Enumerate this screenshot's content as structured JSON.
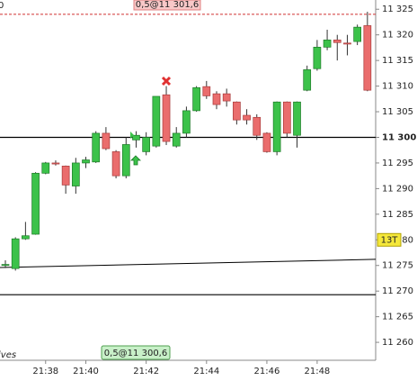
{
  "chart_data": {
    "type": "candlestick",
    "categories": [
      null,
      null,
      null,
      null,
      "21:38",
      null,
      null,
      null,
      "21:40",
      null,
      null,
      null,
      null,
      null,
      "21:42",
      null,
      null,
      null,
      null,
      null,
      "21:44",
      null,
      null,
      null,
      null,
      null,
      "21:46",
      null,
      null,
      null,
      null,
      "21:48",
      null,
      null,
      null,
      null,
      null
    ],
    "open": [
      11275,
      11274.4,
      11280.2,
      11281.1,
      11293,
      11295,
      11294.4,
      11290.5,
      11295,
      11295.2,
      11300.8,
      11297.2,
      11292.5,
      11299.5,
      11297.2,
      11298.3,
      11308.3,
      11298.3,
      11300.8,
      11305.2,
      11309.9,
      11308.5,
      11308.5,
      11306.9,
      11304.3,
      11303.9,
      11300.8,
      11297.2,
      11306.9,
      11300.4,
      11309.2,
      11313.4,
      11317.6,
      11319,
      11318.4,
      11318.7,
      11321.8
    ],
    "high": [
      11276,
      11280.5,
      11283.5,
      11293.2,
      11295.2,
      11295.5,
      11294.5,
      11296,
      11296.2,
      11301.2,
      11302,
      11297.5,
      11300,
      11301.2,
      11301,
      11308,
      11310,
      11302,
      11306,
      11310,
      11311,
      11309,
      11309.5,
      11307,
      11305.5,
      11304.5,
      11301,
      11307,
      11307,
      11307,
      11314,
      11319,
      11321,
      11320,
      11320,
      11322,
      11324.5
    ],
    "low": [
      11274.5,
      11274,
      11280,
      11281,
      11292.8,
      11294.5,
      11289,
      11289,
      11294,
      11295,
      11297.5,
      11292,
      11292,
      11298,
      11296.5,
      11298,
      11298.5,
      11298,
      11300,
      11305,
      11307.5,
      11305.5,
      11306,
      11302.5,
      11302.5,
      11299.5,
      11297,
      11296.5,
      11300,
      11298,
      11309,
      11313,
      11317,
      11315,
      11316,
      11318,
      11309
    ],
    "close": [
      11275.2,
      11280.2,
      11280.8,
      11293,
      11295,
      11294.8,
      11290.7,
      11295,
      11295.6,
      11300.8,
      11297.8,
      11292.5,
      11298.6,
      11300.4,
      11300,
      11308,
      11299.2,
      11300.8,
      11305.2,
      11309.7,
      11308.1,
      11306.4,
      11307.1,
      11303.4,
      11303.4,
      11300.4,
      11297.2,
      11306.9,
      11300.8,
      11306.9,
      11313.2,
      11317.6,
      11319,
      11318.5,
      11318.2,
      11321.5,
      11309.2
    ],
    "up_color": "#3cc24a",
    "down_color": "#ea6d6d",
    "ylim": [
      11256.5,
      11326.8
    ],
    "yticks": [
      {
        "value": 11260,
        "label": "11 260"
      },
      {
        "value": 11265,
        "label": "11 265"
      },
      {
        "value": 11270,
        "label": "11 270"
      },
      {
        "value": 11275,
        "label": "11 275"
      },
      {
        "value": 11280,
        "label": "11 280"
      },
      {
        "value": 11285,
        "label": "11 285"
      },
      {
        "value": 11290,
        "label": "11 290"
      },
      {
        "value": 11295,
        "label": "11 295"
      },
      {
        "value": 11300,
        "label": "11 300"
      },
      {
        "value": 11305,
        "label": "11 305"
      },
      {
        "value": 11310,
        "label": "11 310"
      },
      {
        "value": 11315,
        "label": "11 315"
      },
      {
        "value": 11320,
        "label": "11 320"
      },
      {
        "value": 11325,
        "label": "11 325"
      }
    ],
    "hlines": [
      11300,
      11269.3
    ],
    "dashed_line": 11324,
    "trendline": [
      11274.6,
      11276.2
    ],
    "axis_badge": "13T",
    "top_order": "0,5@11 301,6",
    "bottom_order": "0,5@11 300,6",
    "top_left_text": "0",
    "bottom_left_text": "ives"
  }
}
